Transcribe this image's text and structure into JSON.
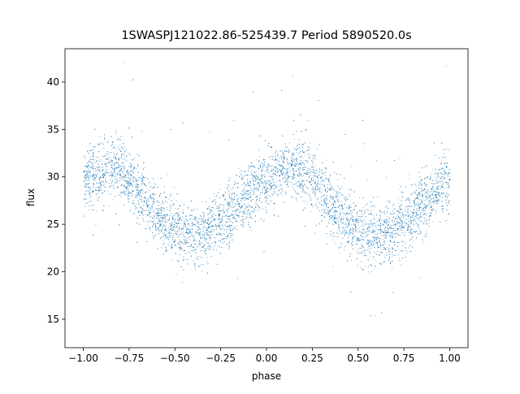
{
  "chart_data": {
    "type": "scatter",
    "title": "1SWASPJ121022.86-525439.7 Period 5890520.0s",
    "xlabel": "phase",
    "ylabel": "flux",
    "xlim": [
      -1.1,
      1.1
    ],
    "ylim": [
      12.0,
      43.5
    ],
    "xticks": [
      -1.0,
      -0.75,
      -0.5,
      -0.25,
      0.0,
      0.25,
      0.5,
      0.75,
      1.0
    ],
    "xtick_labels": [
      "−1.00",
      "−0.75",
      "−0.50",
      "−0.25",
      "0.00",
      "0.25",
      "0.50",
      "0.75",
      "1.00"
    ],
    "yticks": [
      15,
      20,
      25,
      30,
      35,
      40
    ],
    "ytick_labels": [
      "15",
      "20",
      "25",
      "30",
      "35",
      "40"
    ],
    "grid": false,
    "legend": "none",
    "marker_color": "#1f77b4",
    "series": [
      {
        "phase_flux_trend": [
          [
            -1.0,
            29.5
          ],
          [
            -0.95,
            30.2
          ],
          [
            -0.9,
            30.6
          ],
          [
            -0.85,
            31.0
          ],
          [
            -0.8,
            30.8
          ],
          [
            -0.75,
            29.8
          ],
          [
            -0.7,
            28.5
          ],
          [
            -0.65,
            27.3
          ],
          [
            -0.6,
            26.2
          ],
          [
            -0.55,
            25.2
          ],
          [
            -0.5,
            24.5
          ],
          [
            -0.45,
            24.0
          ],
          [
            -0.4,
            23.8
          ],
          [
            -0.35,
            24.0
          ],
          [
            -0.3,
            24.5
          ],
          [
            -0.25,
            25.2
          ],
          [
            -0.2,
            26.0
          ],
          [
            -0.15,
            27.0
          ],
          [
            -0.1,
            28.0
          ],
          [
            -0.05,
            29.2
          ],
          [
            0.0,
            29.5
          ],
          [
            0.05,
            30.2
          ],
          [
            0.1,
            30.6
          ],
          [
            0.15,
            31.0
          ],
          [
            0.2,
            30.8
          ],
          [
            0.25,
            29.8
          ],
          [
            0.3,
            28.5
          ],
          [
            0.35,
            27.3
          ],
          [
            0.4,
            26.2
          ],
          [
            0.45,
            25.2
          ],
          [
            0.5,
            24.5
          ],
          [
            0.55,
            24.0
          ],
          [
            0.6,
            23.8
          ],
          [
            0.65,
            24.0
          ],
          [
            0.7,
            24.5
          ],
          [
            0.75,
            25.2
          ],
          [
            0.8,
            26.0
          ],
          [
            0.85,
            27.0
          ],
          [
            0.9,
            28.0
          ],
          [
            0.95,
            29.2
          ],
          [
            1.0,
            29.5
          ]
        ],
        "scatter_spread": 1.6,
        "point_count": 9000
      }
    ]
  }
}
